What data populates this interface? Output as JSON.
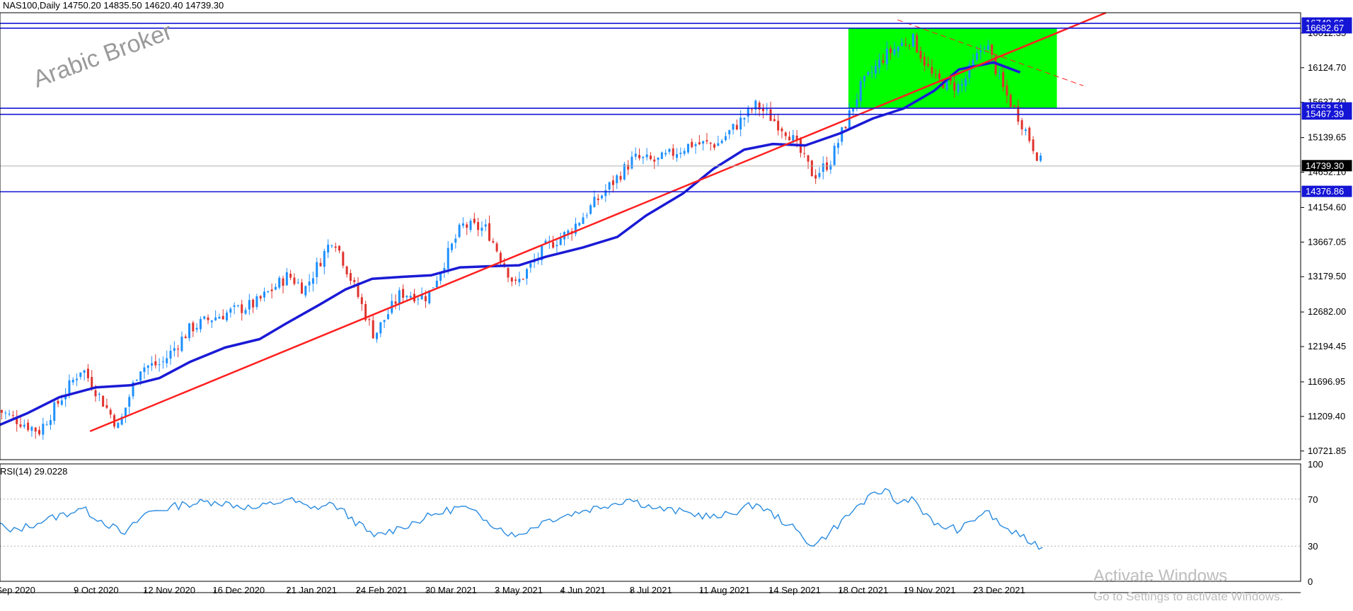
{
  "header": {
    "symbol_line": "NAS100,Daily  14750.20 14835.50 14620.40 14739.30"
  },
  "watermark": "Arabic Broker",
  "activation": {
    "title": "Activate Windows",
    "subtitle": "Go to Settings to activate Windows."
  },
  "colors": {
    "bull": "#1e90ff",
    "bear": "#e0332d",
    "ma": "#1a1ad6",
    "trend": "#ff2020",
    "level": "#1515d6",
    "zone": "#00ff00",
    "rsi": "#2a8be0",
    "current": "#b0b0b0"
  },
  "chart_data": [
    {
      "type": "candlestick",
      "title": "NAS100,Daily",
      "ohlc_last": {
        "open": "14750.20",
        "high": "14835.50",
        "low": "14620.40",
        "close": "14739.30"
      },
      "x_tick_labels": [
        "Sep 2020",
        "9 Oct 2020",
        "12 Nov 2020",
        "16 Dec 2020",
        "21 Jan 2021",
        "24 Feb 2021",
        "30 Mar 2021",
        "3 May 2021",
        "4 Jun 2021",
        "8 Jul 2021",
        "11 Aug 2021",
        "14 Sep 2021",
        "18 Oct 2021",
        "19 Nov 2021",
        "23 Dec 2021"
      ],
      "y_tick_labels": [
        "16612.35",
        "16124.70",
        "15637.20",
        "15139.65",
        "14652.10",
        "14154.60",
        "13667.05",
        "13179.50",
        "12682.00",
        "12194.45",
        "11696.95",
        "11209.40",
        "10721.85"
      ],
      "ylim": [
        10600,
        16900
      ],
      "horizontal_levels": [
        {
          "value": 16749.66,
          "label": "16749.66"
        },
        {
          "value": 16682.67,
          "label": "16682.67"
        },
        {
          "value": 15553.51,
          "label": "15553.51"
        },
        {
          "value": 15467.39,
          "label": "15467.39"
        },
        {
          "value": 14376.86,
          "label": "14376.86"
        }
      ],
      "current_price": {
        "value": 14739.3,
        "label": "14739.30"
      },
      "zone": {
        "from": "22 Oct 2021",
        "to": "1 Feb 2022",
        "low": 15553.51,
        "high": 16682.67
      },
      "trend_lines": [
        {
          "style": "solid",
          "points": [
            [
              "16 Oct 2020",
              11000
            ],
            [
              "25 Feb 2022",
              16900
            ]
          ]
        },
        {
          "style": "dashed",
          "points": [
            [
              "15 Nov 2021",
              16800
            ],
            [
              "14 Feb 2022",
              15870
            ]
          ]
        }
      ],
      "moving_average_points": [
        [
          "1 Sep 2020",
          11080
        ],
        [
          "15 Sep 2020",
          11250
        ],
        [
          "1 Oct 2020",
          11480
        ],
        [
          "19 Oct 2020",
          11620
        ],
        [
          "5 Nov 2020",
          11650
        ],
        [
          "19 Nov 2020",
          11750
        ],
        [
          "4 Dec 2020",
          11980
        ],
        [
          "21 Dec 2020",
          12180
        ],
        [
          "7 Jan 2021",
          12300
        ],
        [
          "20 Jan 2021",
          12520
        ],
        [
          "5 Feb 2021",
          12780
        ],
        [
          "18 Feb 2021",
          13000
        ],
        [
          "3 Mar 2021",
          13150
        ],
        [
          "19 Mar 2021",
          13180
        ],
        [
          "1 Apr 2021",
          13200
        ],
        [
          "15 Apr 2021",
          13310
        ],
        [
          "3 May 2021",
          13330
        ],
        [
          "14 May 2021",
          13340
        ],
        [
          "27 May 2021",
          13460
        ],
        [
          "14 Jun 2021",
          13590
        ],
        [
          "1 Jul 2021",
          13740
        ],
        [
          "15 Jul 2021",
          14040
        ],
        [
          "2 Aug 2021",
          14350
        ],
        [
          "17 Aug 2021",
          14700
        ],
        [
          "1 Sep 2021",
          14970
        ],
        [
          "15 Sep 2021",
          15050
        ],
        [
          "1 Oct 2021",
          15030
        ],
        [
          "18 Oct 2021",
          15200
        ],
        [
          "3 Nov 2021",
          15410
        ],
        [
          "18 Nov 2021",
          15550
        ],
        [
          "3 Dec 2021",
          15800
        ],
        [
          "15 Dec 2021",
          16100
        ],
        [
          "1 Jan 2022",
          16200
        ],
        [
          "14 Jan 2022",
          16060
        ]
      ],
      "candle_anchors": [
        [
          "1 Sep 2020",
          11300
        ],
        [
          "21 Sep 2020",
          11000
        ],
        [
          "12 Oct 2020",
          11900
        ],
        [
          "30 Oct 2020",
          11050
        ],
        [
          "9 Nov 2020",
          11900
        ],
        [
          "20 Nov 2020",
          11950
        ],
        [
          "4 Dec 2020",
          12450
        ],
        [
          "15 Dec 2020",
          12600
        ],
        [
          "5 Jan 2021",
          12800
        ],
        [
          "21 Jan 2021",
          13200
        ],
        [
          "29 Jan 2021",
          13000
        ],
        [
          "12 Feb 2021",
          13750
        ],
        [
          "4 Mar 2021",
          12350
        ],
        [
          "17 Mar 2021",
          12950
        ],
        [
          "30 Mar 2021",
          12900
        ],
        [
          "16 Apr 2021",
          13900
        ],
        [
          "28 Apr 2021",
          13850
        ],
        [
          "12 May 2021",
          13050
        ],
        [
          "27 May 2021",
          13600
        ],
        [
          "7 Jun 2021",
          13800
        ],
        [
          "30 Jun 2021",
          14550
        ],
        [
          "9 Jul 2021",
          14850
        ],
        [
          "20 Jul 2021",
          14800
        ],
        [
          "6 Aug 2021",
          15050
        ],
        [
          "19 Aug 2021",
          15050
        ],
        [
          "7 Sep 2021",
          15600
        ],
        [
          "23 Sep 2021",
          15200
        ],
        [
          "5 Oct 2021",
          14600
        ],
        [
          "13 Oct 2021",
          14800
        ],
        [
          "28 Oct 2021",
          15850
        ],
        [
          "9 Nov 2021",
          16300
        ],
        [
          "22 Nov 2021",
          16550
        ],
        [
          "3 Dec 2021",
          15950
        ],
        [
          "16 Dec 2021",
          15850
        ],
        [
          "28 Dec 2021",
          16500
        ],
        [
          "6 Jan 2022",
          15800
        ],
        [
          "14 Jan 2022",
          15400
        ],
        [
          "25 Jan 2022",
          14739.3
        ]
      ]
    },
    {
      "type": "line",
      "title": "RSI(14) 29.0228",
      "ylim": [
        0,
        100
      ],
      "y_tick_labels": [
        "100",
        "70",
        "30",
        "0"
      ],
      "reference_levels": [
        70,
        30
      ],
      "points": [
        [
          "1 Sep 2020",
          50
        ],
        [
          "7 Sep 2020",
          42
        ],
        [
          "24 Sep 2020",
          52
        ],
        [
          "12 Oct 2020",
          62
        ],
        [
          "2 Nov 2020",
          40
        ],
        [
          "12 Nov 2020",
          58
        ],
        [
          "2 Dec 2020",
          66
        ],
        [
          "16 Dec 2020",
          68
        ],
        [
          "5 Jan 2021",
          62
        ],
        [
          "21 Jan 2021",
          70
        ],
        [
          "1 Feb 2021",
          62
        ],
        [
          "12 Feb 2021",
          66
        ],
        [
          "4 Mar 2021",
          38
        ],
        [
          "17 Mar 2021",
          46
        ],
        [
          "1 Apr 2021",
          56
        ],
        [
          "16 Apr 2021",
          64
        ],
        [
          "28 Apr 2021",
          52
        ],
        [
          "12 May 2021",
          38
        ],
        [
          "27 May 2021",
          52
        ],
        [
          "14 Jun 2021",
          60
        ],
        [
          "7 Jul 2021",
          70
        ],
        [
          "20 Jul 2021",
          62
        ],
        [
          "6 Aug 2021",
          58
        ],
        [
          "19 Aug 2021",
          54
        ],
        [
          "7 Sep 2021",
          66
        ],
        [
          "23 Sep 2021",
          48
        ],
        [
          "5 Oct 2021",
          30
        ],
        [
          "13 Oct 2021",
          42
        ],
        [
          "28 Oct 2021",
          66
        ],
        [
          "9 Nov 2021",
          79
        ],
        [
          "15 Nov 2021",
          66
        ],
        [
          "22 Nov 2021",
          72
        ],
        [
          "3 Dec 2021",
          48
        ],
        [
          "16 Dec 2021",
          44
        ],
        [
          "28 Dec 2021",
          60
        ],
        [
          "6 Jan 2022",
          46
        ],
        [
          "14 Jan 2022",
          38
        ],
        [
          "25 Jan 2022",
          29
        ]
      ]
    }
  ]
}
